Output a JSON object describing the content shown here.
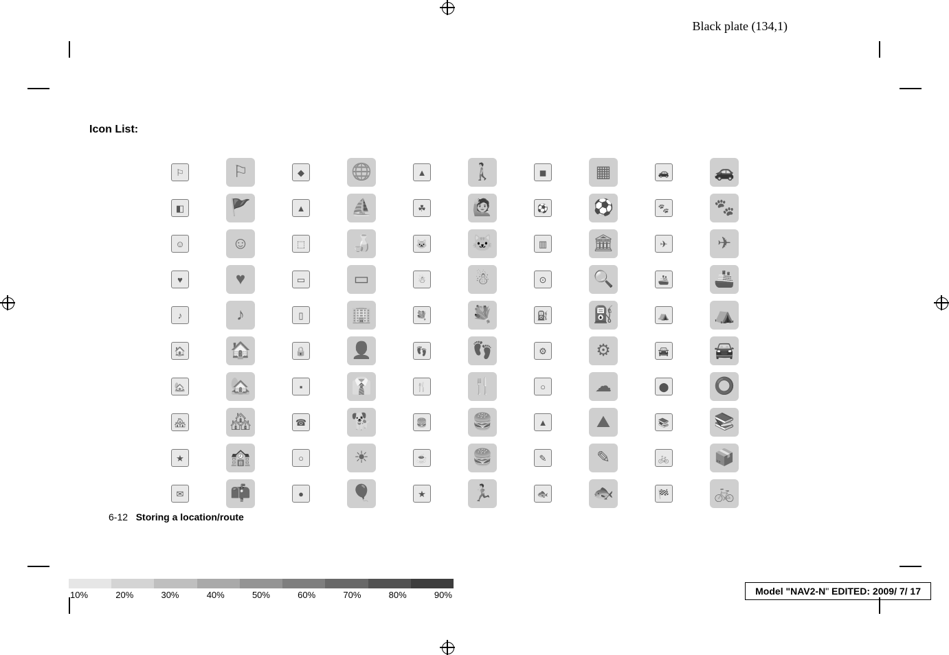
{
  "header": {
    "black_plate": "Black plate (134,1)"
  },
  "title": "Icon List:",
  "footer": {
    "page_number": "6-12",
    "section_title": "Storing a location/route"
  },
  "model_box": {
    "prefix": "Model \"",
    "model": "NAV2-N",
    "infix": "\"  ",
    "edited_label": "EDITED:",
    "edited_date": " 2009/ 7/ 17"
  },
  "density": {
    "labels": [
      "10%",
      "20%",
      "30%",
      "40%",
      "50%",
      "60%",
      "70%",
      "80%",
      "90%"
    ],
    "shades": [
      "#e6e6e6",
      "#d4d4d4",
      "#bfbfbf",
      "#a9a9a9",
      "#949494",
      "#7e7e7e",
      "#686868",
      "#525252",
      "#3d3d3d"
    ]
  },
  "icons": {
    "rows": [
      [
        "⚐",
        "⚐",
        "◆",
        "🌐",
        "▲",
        "🚶",
        "◼",
        "▦",
        "🚗",
        "🚗"
      ],
      [
        "◧",
        "🚩",
        "▲",
        "⛵",
        "☘",
        "🙋",
        "⚽",
        "⚽",
        "🐾",
        "🐾"
      ],
      [
        "☺",
        "☺",
        "⬚",
        "🍶",
        "🐱",
        "🐱",
        "▥",
        "🏛",
        "✈",
        "✈"
      ],
      [
        "♥",
        "♥",
        "▭",
        "▭",
        "☃",
        "☃",
        "⊙",
        "🔍",
        "🚢",
        "🚢"
      ],
      [
        "♪",
        "♪",
        "▯",
        "🏢",
        "💐",
        "💐",
        "⛽",
        "⛽",
        "⛺",
        "⛺"
      ],
      [
        "🏠",
        "🏠",
        "🔒",
        "👤",
        "👣",
        "👣",
        "⚙",
        "⚙",
        "🚘",
        "🚘"
      ],
      [
        "🏡",
        "🏡",
        "▪",
        "👔",
        "🍴",
        "🍴",
        "○",
        "☁",
        "⬤",
        "⭕"
      ],
      [
        "🏘",
        "🏘",
        "☎",
        "🐕",
        "🍔",
        "🍔",
        "▲",
        "⛰",
        "📚",
        "📚"
      ],
      [
        "★",
        "🏫",
        "○",
        "☀",
        "☕",
        "🍔",
        "✎",
        "✎",
        "🚲",
        "📦"
      ],
      [
        "✉",
        "📫",
        "●",
        "🎈",
        "★",
        "🏃",
        "🐟",
        "🐟",
        "🏁",
        "🚲"
      ]
    ]
  }
}
